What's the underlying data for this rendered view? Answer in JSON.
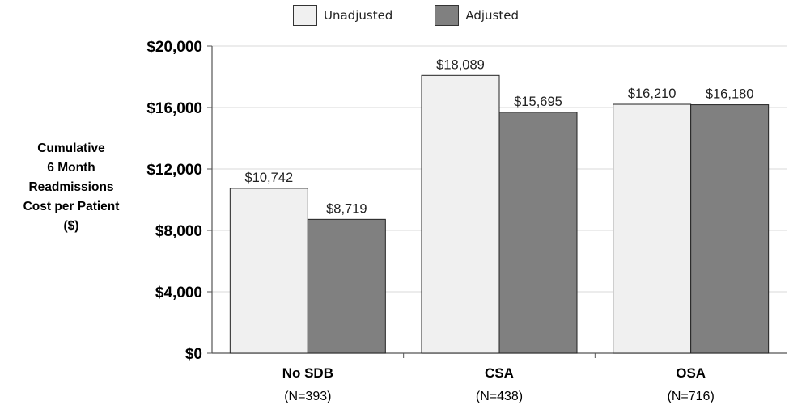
{
  "chart_data": {
    "type": "bar",
    "categories": [
      "No SDB",
      "CSA",
      "OSA"
    ],
    "category_sublabels": [
      "(N=393)",
      "(N=438)",
      "(N=716)"
    ],
    "series": [
      {
        "name": "Unadjusted",
        "color": "#f0f0f0",
        "values": [
          10742,
          18089,
          16210
        ],
        "value_labels": [
          "$10,742",
          "$18,089",
          "$16,210"
        ]
      },
      {
        "name": "Adjusted",
        "color": "#808080",
        "values": [
          8719,
          15695,
          16180
        ],
        "value_labels": [
          "$8,719",
          "$15,695",
          "$16,180"
        ]
      }
    ],
    "ylabel_lines": [
      "Cumulative",
      "6 Month",
      "Readmissions",
      "Cost per Patient",
      "($)"
    ],
    "ylim": [
      0,
      20000
    ],
    "yticks": [
      0,
      4000,
      8000,
      12000,
      16000,
      20000
    ],
    "ytick_labels": [
      "$0",
      "$4,000",
      "$8,000",
      "$12,000",
      "$16,000",
      "$20,000"
    ],
    "grid": true,
    "legend_position": "top-center"
  }
}
